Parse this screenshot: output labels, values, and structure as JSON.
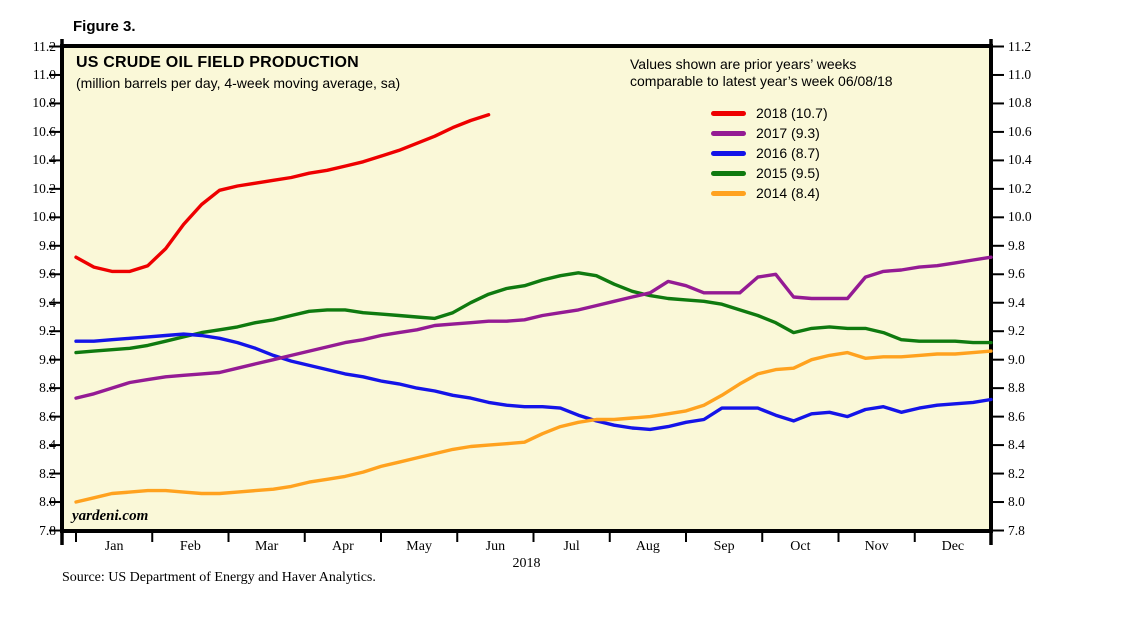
{
  "figure_label": "Figure 3.",
  "chart": {
    "title": "US CRUDE OIL FIELD PRODUCTION",
    "subtitle": "(million barrels per day, 4-week moving average, sa)",
    "annotation": {
      "line1": "Values shown are prior years’ weeks",
      "line2": "comparable to latest year’s week 06/08/18"
    },
    "watermark": "yardeni.com",
    "source": "Source: US Department of Energy and Haver Analytics."
  },
  "chart_data": {
    "type": "line",
    "title": "US CRUDE OIL FIELD PRODUCTION",
    "ylabel": "million barrels per day, 4-week moving average, sa",
    "ylim": [
      7.8,
      11.2
    ],
    "y_tick_step": 0.2,
    "y_tick_labels": [
      "11.2",
      "11.0",
      "10.8",
      "10.6",
      "10.4",
      "10.2",
      "10.0",
      "9.8",
      "9.6",
      "9.4",
      "9.2",
      "9.0",
      "8.8",
      "8.6",
      "8.4",
      "8.2",
      "8.0",
      "7.8"
    ],
    "x_labels": [
      "Jan",
      "Feb",
      "Mar",
      "Apr",
      "May",
      "Jun",
      "Jul",
      "Aug",
      "Sep",
      "Oct",
      "Nov",
      "Dec"
    ],
    "x_year": "2018",
    "weeks_per_year": 52,
    "grid": false,
    "legend_position": "top-right",
    "plot_bg": "#FAF8D8",
    "frame_color": "#000000",
    "series": [
      {
        "name": "2018",
        "legend_label": "2018 (10.7)",
        "color": "#EE0000",
        "values": [
          9.72,
          9.65,
          9.62,
          9.62,
          9.66,
          9.78,
          9.95,
          10.09,
          10.19,
          10.22,
          10.24,
          10.26,
          10.28,
          10.31,
          10.33,
          10.36,
          10.39,
          10.43,
          10.47,
          10.52,
          10.57,
          10.63,
          10.68,
          10.72
        ]
      },
      {
        "name": "2017",
        "legend_label": "2017 (9.3)",
        "color": "#941B94",
        "values": [
          8.73,
          8.76,
          8.8,
          8.84,
          8.86,
          8.88,
          8.89,
          8.9,
          8.91,
          8.94,
          8.97,
          9.0,
          9.03,
          9.06,
          9.09,
          9.12,
          9.14,
          9.17,
          9.19,
          9.21,
          9.24,
          9.25,
          9.26,
          9.27,
          9.27,
          9.28,
          9.31,
          9.33,
          9.35,
          9.38,
          9.41,
          9.44,
          9.47,
          9.55,
          9.52,
          9.47,
          9.47,
          9.47,
          9.58,
          9.6,
          9.44,
          9.43,
          9.43,
          9.43,
          9.58,
          9.62,
          9.63,
          9.65,
          9.66,
          9.68,
          9.7,
          9.72
        ]
      },
      {
        "name": "2016",
        "legend_label": "2016 (8.7)",
        "color": "#1414E8",
        "values": [
          9.13,
          9.13,
          9.14,
          9.15,
          9.16,
          9.17,
          9.18,
          9.17,
          9.15,
          9.12,
          9.08,
          9.03,
          8.99,
          8.96,
          8.93,
          8.9,
          8.88,
          8.85,
          8.83,
          8.8,
          8.78,
          8.75,
          8.73,
          8.7,
          8.68,
          8.67,
          8.67,
          8.66,
          8.61,
          8.57,
          8.54,
          8.52,
          8.51,
          8.53,
          8.56,
          8.58,
          8.66,
          8.66,
          8.66,
          8.61,
          8.57,
          8.62,
          8.63,
          8.6,
          8.65,
          8.67,
          8.63,
          8.66,
          8.68,
          8.69,
          8.7,
          8.72
        ]
      },
      {
        "name": "2015",
        "legend_label": "2015 (9.5)",
        "color": "#0F7A0F",
        "values": [
          9.05,
          9.06,
          9.07,
          9.08,
          9.1,
          9.13,
          9.16,
          9.19,
          9.21,
          9.23,
          9.26,
          9.28,
          9.31,
          9.34,
          9.35,
          9.35,
          9.33,
          9.32,
          9.31,
          9.3,
          9.29,
          9.33,
          9.4,
          9.46,
          9.5,
          9.52,
          9.56,
          9.59,
          9.61,
          9.59,
          9.53,
          9.48,
          9.45,
          9.43,
          9.42,
          9.41,
          9.39,
          9.35,
          9.31,
          9.26,
          9.19,
          9.22,
          9.23,
          9.22,
          9.22,
          9.19,
          9.14,
          9.13,
          9.13,
          9.13,
          9.12,
          9.12
        ]
      },
      {
        "name": "2014",
        "legend_label": "2014 (8.4)",
        "color": "#FFA21F",
        "values": [
          8.0,
          8.03,
          8.06,
          8.07,
          8.08,
          8.08,
          8.07,
          8.06,
          8.06,
          8.07,
          8.08,
          8.09,
          8.11,
          8.14,
          8.16,
          8.18,
          8.21,
          8.25,
          8.28,
          8.31,
          8.34,
          8.37,
          8.39,
          8.4,
          8.41,
          8.42,
          8.48,
          8.53,
          8.56,
          8.58,
          8.58,
          8.59,
          8.6,
          8.62,
          8.64,
          8.68,
          8.75,
          8.83,
          8.9,
          8.93,
          8.94,
          9.0,
          9.03,
          9.05,
          9.01,
          9.02,
          9.02,
          9.03,
          9.04,
          9.04,
          9.05,
          9.06
        ]
      }
    ]
  }
}
